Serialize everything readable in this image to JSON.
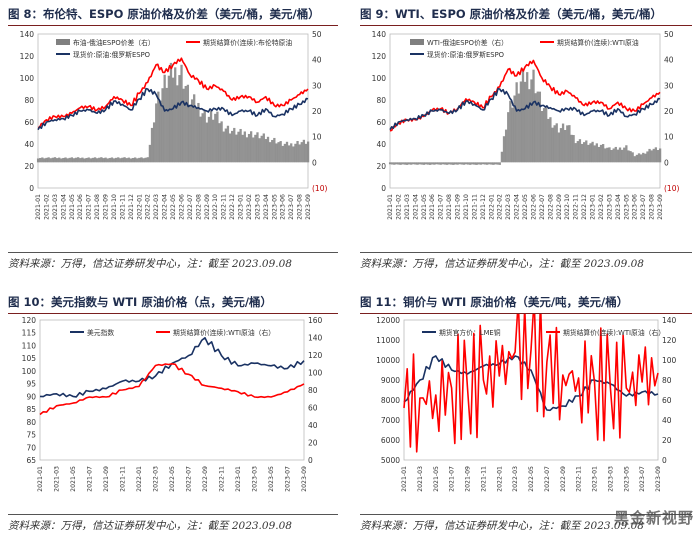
{
  "figures": [
    {
      "title": "图 8：布伦特、ESPO 原油价格及价差（美元/桶，美元/桶）",
      "source": "资料来源：万得，信达证券研发中心，注：截至 2023.09.08"
    },
    {
      "title": "图 9：WTI、ESPO 原油价格及价差（美元/桶，美元/桶）",
      "source": "资料来源：万得，信达证券研发中心，注：截至 2023.09.08"
    },
    {
      "title": "图 10：美元指数与 WTI 原油价格（点，美元/桶）",
      "source": "资料来源：万得，信达证券研发中心，注：截至 2023.09.08"
    },
    {
      "title": "图 11：铜价与 WTI 原油价格（美元/吨，美元/桶）",
      "source": "资料来源：万得，信达证券研发中心，注：截至 2023.09.08"
    }
  ],
  "watermark": "黑金新视野",
  "chart_data": [
    {
      "type": "line",
      "title": "布伦特、ESPO 原油价格及价差",
      "x": [
        "2021-01",
        "2021-02",
        "2021-03",
        "2021-04",
        "2021-05",
        "2021-06",
        "2021-07",
        "2021-08",
        "2021-09",
        "2021-10",
        "2021-11",
        "2021-12",
        "2022-01",
        "2022-02",
        "2022-03",
        "2022-04",
        "2022-05",
        "2022-06",
        "2022-07",
        "2022-08",
        "2022-09",
        "2022-10",
        "2022-11",
        "2022-12",
        "2023-01",
        "2023-02",
        "2023-03",
        "2023-04",
        "2023-05",
        "2023-06",
        "2023-07",
        "2023-08",
        "2023-09"
      ],
      "left_axis": {
        "ticks": [
          0,
          20,
          40,
          60,
          80,
          100,
          120,
          140
        ],
        "ylim": [
          0,
          140
        ]
      },
      "right_axis": {
        "ticks": [
          "(10)",
          "0",
          "10",
          "20",
          "30",
          "40",
          "50"
        ],
        "ylim": [
          -10,
          50
        ]
      },
      "series": [
        {
          "name": "期货结算价(连续):布伦特原油",
          "color": "#ff0000",
          "axis": "left",
          "values": [
            55,
            62,
            65,
            65,
            68,
            73,
            74,
            71,
            74,
            83,
            80,
            75,
            86,
            96,
            112,
            105,
            112,
            118,
            103,
            98,
            90,
            93,
            88,
            80,
            83,
            83,
            78,
            83,
            75,
            75,
            80,
            85,
            90
          ]
        },
        {
          "name": "现货价:原油:俄罗斯ESPO",
          "color": "#1a3263",
          "axis": "left",
          "values": [
            53,
            60,
            62,
            63,
            66,
            70,
            71,
            68,
            71,
            79,
            76,
            71,
            81,
            90,
            85,
            70,
            72,
            78,
            75,
            73,
            70,
            72,
            72,
            66,
            70,
            70,
            66,
            72,
            65,
            67,
            72,
            76,
            81
          ]
        },
        {
          "name": "布油-俄油ESPO价差（右）",
          "color": "#808080",
          "axis": "right",
          "kind": "area",
          "values": [
            2,
            2,
            2,
            2,
            2,
            2,
            2,
            2,
            2,
            2,
            2,
            2,
            2,
            2,
            27,
            35,
            40,
            40,
            28,
            25,
            20,
            21,
            16,
            14,
            13,
            13,
            12,
            11,
            10,
            8,
            8,
            9,
            9
          ]
        }
      ],
      "legend": [
        "布油-俄油ESPO价差（右）",
        "期货结算价(连续):布伦特原油",
        "现货价:原油:俄罗斯ESPO"
      ]
    },
    {
      "type": "line",
      "title": "WTI、ESPO 原油价格及价差",
      "x": [
        "2021-01",
        "2021-02",
        "2021-03",
        "2021-04",
        "2021-05",
        "2021-06",
        "2021-07",
        "2021-08",
        "2021-09",
        "2021-10",
        "2021-11",
        "2021-12",
        "2022-01",
        "2022-02",
        "2022-03",
        "2022-04",
        "2022-05",
        "2022-06",
        "2022-07",
        "2022-08",
        "2022-09",
        "2022-10",
        "2022-11",
        "2022-12",
        "2023-01",
        "2023-02",
        "2023-03",
        "2023-04",
        "2023-05",
        "2023-06",
        "2023-07",
        "2023-08",
        "2023-09"
      ],
      "left_axis": {
        "ticks": [
          0,
          20,
          40,
          60,
          80,
          100,
          120,
          140
        ],
        "ylim": [
          0,
          140
        ]
      },
      "right_axis": {
        "ticks": [
          "(10)",
          "0",
          "10",
          "20",
          "30",
          "40",
          "50"
        ],
        "ylim": [
          -10,
          50
        ]
      },
      "series": [
        {
          "name": "期货结算价(连续):WTI原油",
          "color": "#ff0000",
          "axis": "left",
          "values": [
            52,
            59,
            62,
            62,
            65,
            71,
            72,
            68,
            72,
            81,
            78,
            73,
            83,
            92,
            108,
            102,
            110,
            116,
            100,
            92,
            85,
            88,
            82,
            75,
            78,
            78,
            72,
            78,
            72,
            70,
            76,
            82,
            87
          ]
        },
        {
          "name": "现货价:原油:俄罗斯ESPO",
          "color": "#1a3263",
          "axis": "left",
          "values": [
            53,
            60,
            62,
            63,
            66,
            70,
            71,
            68,
            71,
            79,
            76,
            71,
            81,
            90,
            85,
            70,
            72,
            78,
            75,
            73,
            70,
            72,
            72,
            66,
            70,
            70,
            66,
            72,
            65,
            67,
            72,
            76,
            81
          ]
        },
        {
          "name": "WTI-俄油ESPO价差（右）",
          "color": "#808080",
          "axis": "right",
          "kind": "area",
          "values": [
            -1,
            -1,
            -1,
            -1,
            -1,
            -1,
            -1,
            -1,
            -1,
            -1,
            -1,
            -1,
            -1,
            -1,
            23,
            32,
            38,
            38,
            25,
            19,
            15,
            16,
            10,
            9,
            8,
            8,
            6,
            6,
            7,
            3,
            4,
            6,
            6
          ]
        }
      ],
      "legend": [
        "WTI-俄油ESPO价差（右）",
        "期货结算价(连续):WTI原油",
        "现货价:原油:俄罗斯ESPO"
      ]
    },
    {
      "type": "line",
      "title": "美元指数与 WTI 原油价格",
      "x": [
        "2021-01",
        "2021-03",
        "2021-05",
        "2021-07",
        "2021-09",
        "2021-11",
        "2022-01",
        "2022-03",
        "2022-05",
        "2022-07",
        "2022-09",
        "2022-11",
        "2023-01",
        "2023-03",
        "2023-05",
        "2023-07",
        "2023-09"
      ],
      "left_axis": {
        "ticks": [
          65,
          70,
          75,
          80,
          85,
          90,
          95,
          100,
          105,
          110,
          115,
          120
        ],
        "ylim": [
          65,
          120
        ]
      },
      "right_axis": {
        "ticks": [
          0,
          20,
          40,
          60,
          80,
          100,
          120,
          140,
          160
        ],
        "ylim": [
          0,
          160
        ]
      },
      "series": [
        {
          "name": "美元指数",
          "color": "#1a3263",
          "axis": "left",
          "values": [
            90,
            91,
            90,
            92,
            93,
            96,
            96,
            98,
            103,
            106,
            113,
            106,
            102,
            103,
            102,
            101,
            104
          ]
        },
        {
          "name": "期货结算价(连续):WTI原油（右）",
          "color": "#ff0000",
          "axis": "right",
          "values": [
            52,
            62,
            65,
            72,
            72,
            80,
            84,
            108,
            110,
            98,
            85,
            82,
            78,
            72,
            72,
            78,
            87
          ]
        }
      ],
      "legend": [
        "美元指数",
        "期货结算价(连续):WTI原油（右）"
      ]
    },
    {
      "type": "line",
      "title": "铜价与 WTI 原油价格",
      "x": [
        "2021-01",
        "2021-03",
        "2021-05",
        "2021-07",
        "2021-09",
        "2021-11",
        "2022-01",
        "2022-03",
        "2022-05",
        "2022-07",
        "2022-09",
        "2022-11",
        "2023-01",
        "2023-03",
        "2023-05",
        "2023-07",
        "2023-09"
      ],
      "left_axis": {
        "ticks": [
          5000,
          6000,
          7000,
          8000,
          9000,
          10000,
          11000,
          12000
        ],
        "ylim": [
          5000,
          12000
        ]
      },
      "right_axis": {
        "ticks": [
          0,
          20,
          40,
          60,
          80,
          100,
          120,
          140
        ],
        "ylim": [
          0,
          140
        ]
      },
      "series": [
        {
          "name": "期货官方价：LME铜",
          "color": "#1a3263",
          "axis": "left",
          "values": [
            7900,
            9000,
            10200,
            9500,
            9300,
            9700,
            9800,
            10200,
            9500,
            7500,
            7700,
            8200,
            9000,
            8800,
            8200,
            8400,
            8300
          ]
        },
        {
          "name": "期货结算价(连续):WTI原油（右）",
          "color": "#ff0000",
          "axis": "right",
          "values": [
            52,
            62,
            65,
            72,
            72,
            80,
            84,
            108,
            110,
            98,
            85,
            82,
            78,
            72,
            72,
            78,
            87
          ]
        }
      ],
      "legend": [
        "期货官方价：LME铜",
        "期货结算价(连续):WTI原油（右）"
      ]
    }
  ]
}
